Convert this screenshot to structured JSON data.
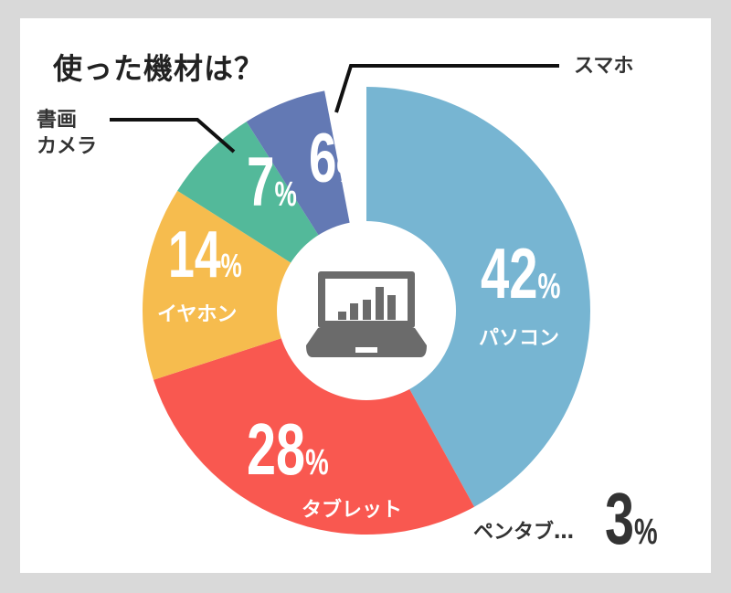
{
  "title": "使った機材は？",
  "colors": {
    "frame": "#d9d9d9",
    "pc": "#77b5d2",
    "tablet": "#f95850",
    "earphone": "#f6bc4e",
    "doccam": "#53b99a",
    "smartphone": "#6379b4",
    "icon": "#6b6b6b",
    "text_dark": "#333333"
  },
  "labels": {
    "pc_pct": "42",
    "pc_name": "パソコン",
    "tablet_pct": "28",
    "tablet_name": "タブレット",
    "earphone_pct": "14",
    "earphone_name": "イヤホン",
    "doccam_pct": "7",
    "doccam_name_1": "書画",
    "doccam_name_2": "カメラ",
    "smartphone_pct": "6",
    "smartphone_name": "スマホ",
    "pentab_name": "ペンタブ…",
    "pentab_pct": "3",
    "unit": "%"
  },
  "center_icon": "laptop-bar-chart-icon",
  "chart_data": {
    "type": "pie",
    "variant": "donut",
    "title": "使った機材は？",
    "categories": [
      "パソコン",
      "タブレット",
      "イヤホン",
      "書画カメラ",
      "スマホ",
      "ペンタブ"
    ],
    "values": [
      42,
      28,
      14,
      7,
      6,
      3
    ],
    "unit": "%",
    "colors": [
      "#77b5d2",
      "#f95850",
      "#f6bc4e",
      "#53b99a",
      "#6379b4",
      null
    ],
    "notes": "ペンタブ 3% shown as text outside the donut; スマホ and 書画カメラ labeled via leader lines",
    "legend": "none"
  }
}
